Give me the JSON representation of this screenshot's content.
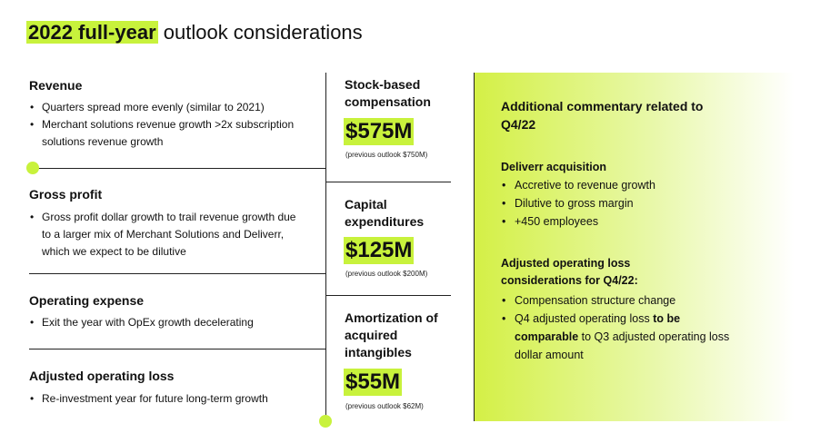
{
  "title": {
    "highlight": "2022 full-year",
    "rest": " outlook considerations"
  },
  "left_sections": [
    {
      "heading": "Revenue",
      "bullets": [
        "Quarters spread more evenly (similar to 2021)",
        "Merchant solutions revenue growth >2x subscription solutions revenue growth"
      ]
    },
    {
      "heading": "Gross profit",
      "bullets": [
        "Gross profit dollar growth to trail revenue growth due to a larger mix of Merchant Solutions and Deliverr, which we expect to be dilutive"
      ]
    },
    {
      "heading": "Operating expense",
      "bullets": [
        "Exit the year with OpEx growth decelerating"
      ]
    },
    {
      "heading": "Adjusted operating loss",
      "bullets": [
        "Re-investment year for future long-term growth"
      ]
    }
  ],
  "middle_items": [
    {
      "label": "Stock-based compensation",
      "value": "$575M",
      "note": "(previous outlook $750M)"
    },
    {
      "label": "Capital expenditures",
      "value": "$125M",
      "note": "(previous outlook $200M)"
    },
    {
      "label": "Amortization of acquired intangibles",
      "value": "$55M",
      "note": "(previous outlook $62M)"
    }
  ],
  "panel": {
    "heading": "Additional commentary related to Q4/22",
    "deliverr": {
      "heading": "Deliverr acquisition",
      "bullets": [
        "Accretive to revenue growth",
        "Dilutive to gross margin",
        "+450 employees"
      ]
    },
    "adj_loss": {
      "heading": "Adjusted operating loss considerations for Q4/22:",
      "bullet1": "Compensation structure change",
      "bullet2_pre": "Q4 adjusted operating loss ",
      "bullet2_bold": "to be comparable",
      "bullet2_post": " to Q3 adjusted operating loss dollar amount"
    }
  },
  "colors": {
    "accent": "#c8f23c",
    "line": "#222222"
  }
}
